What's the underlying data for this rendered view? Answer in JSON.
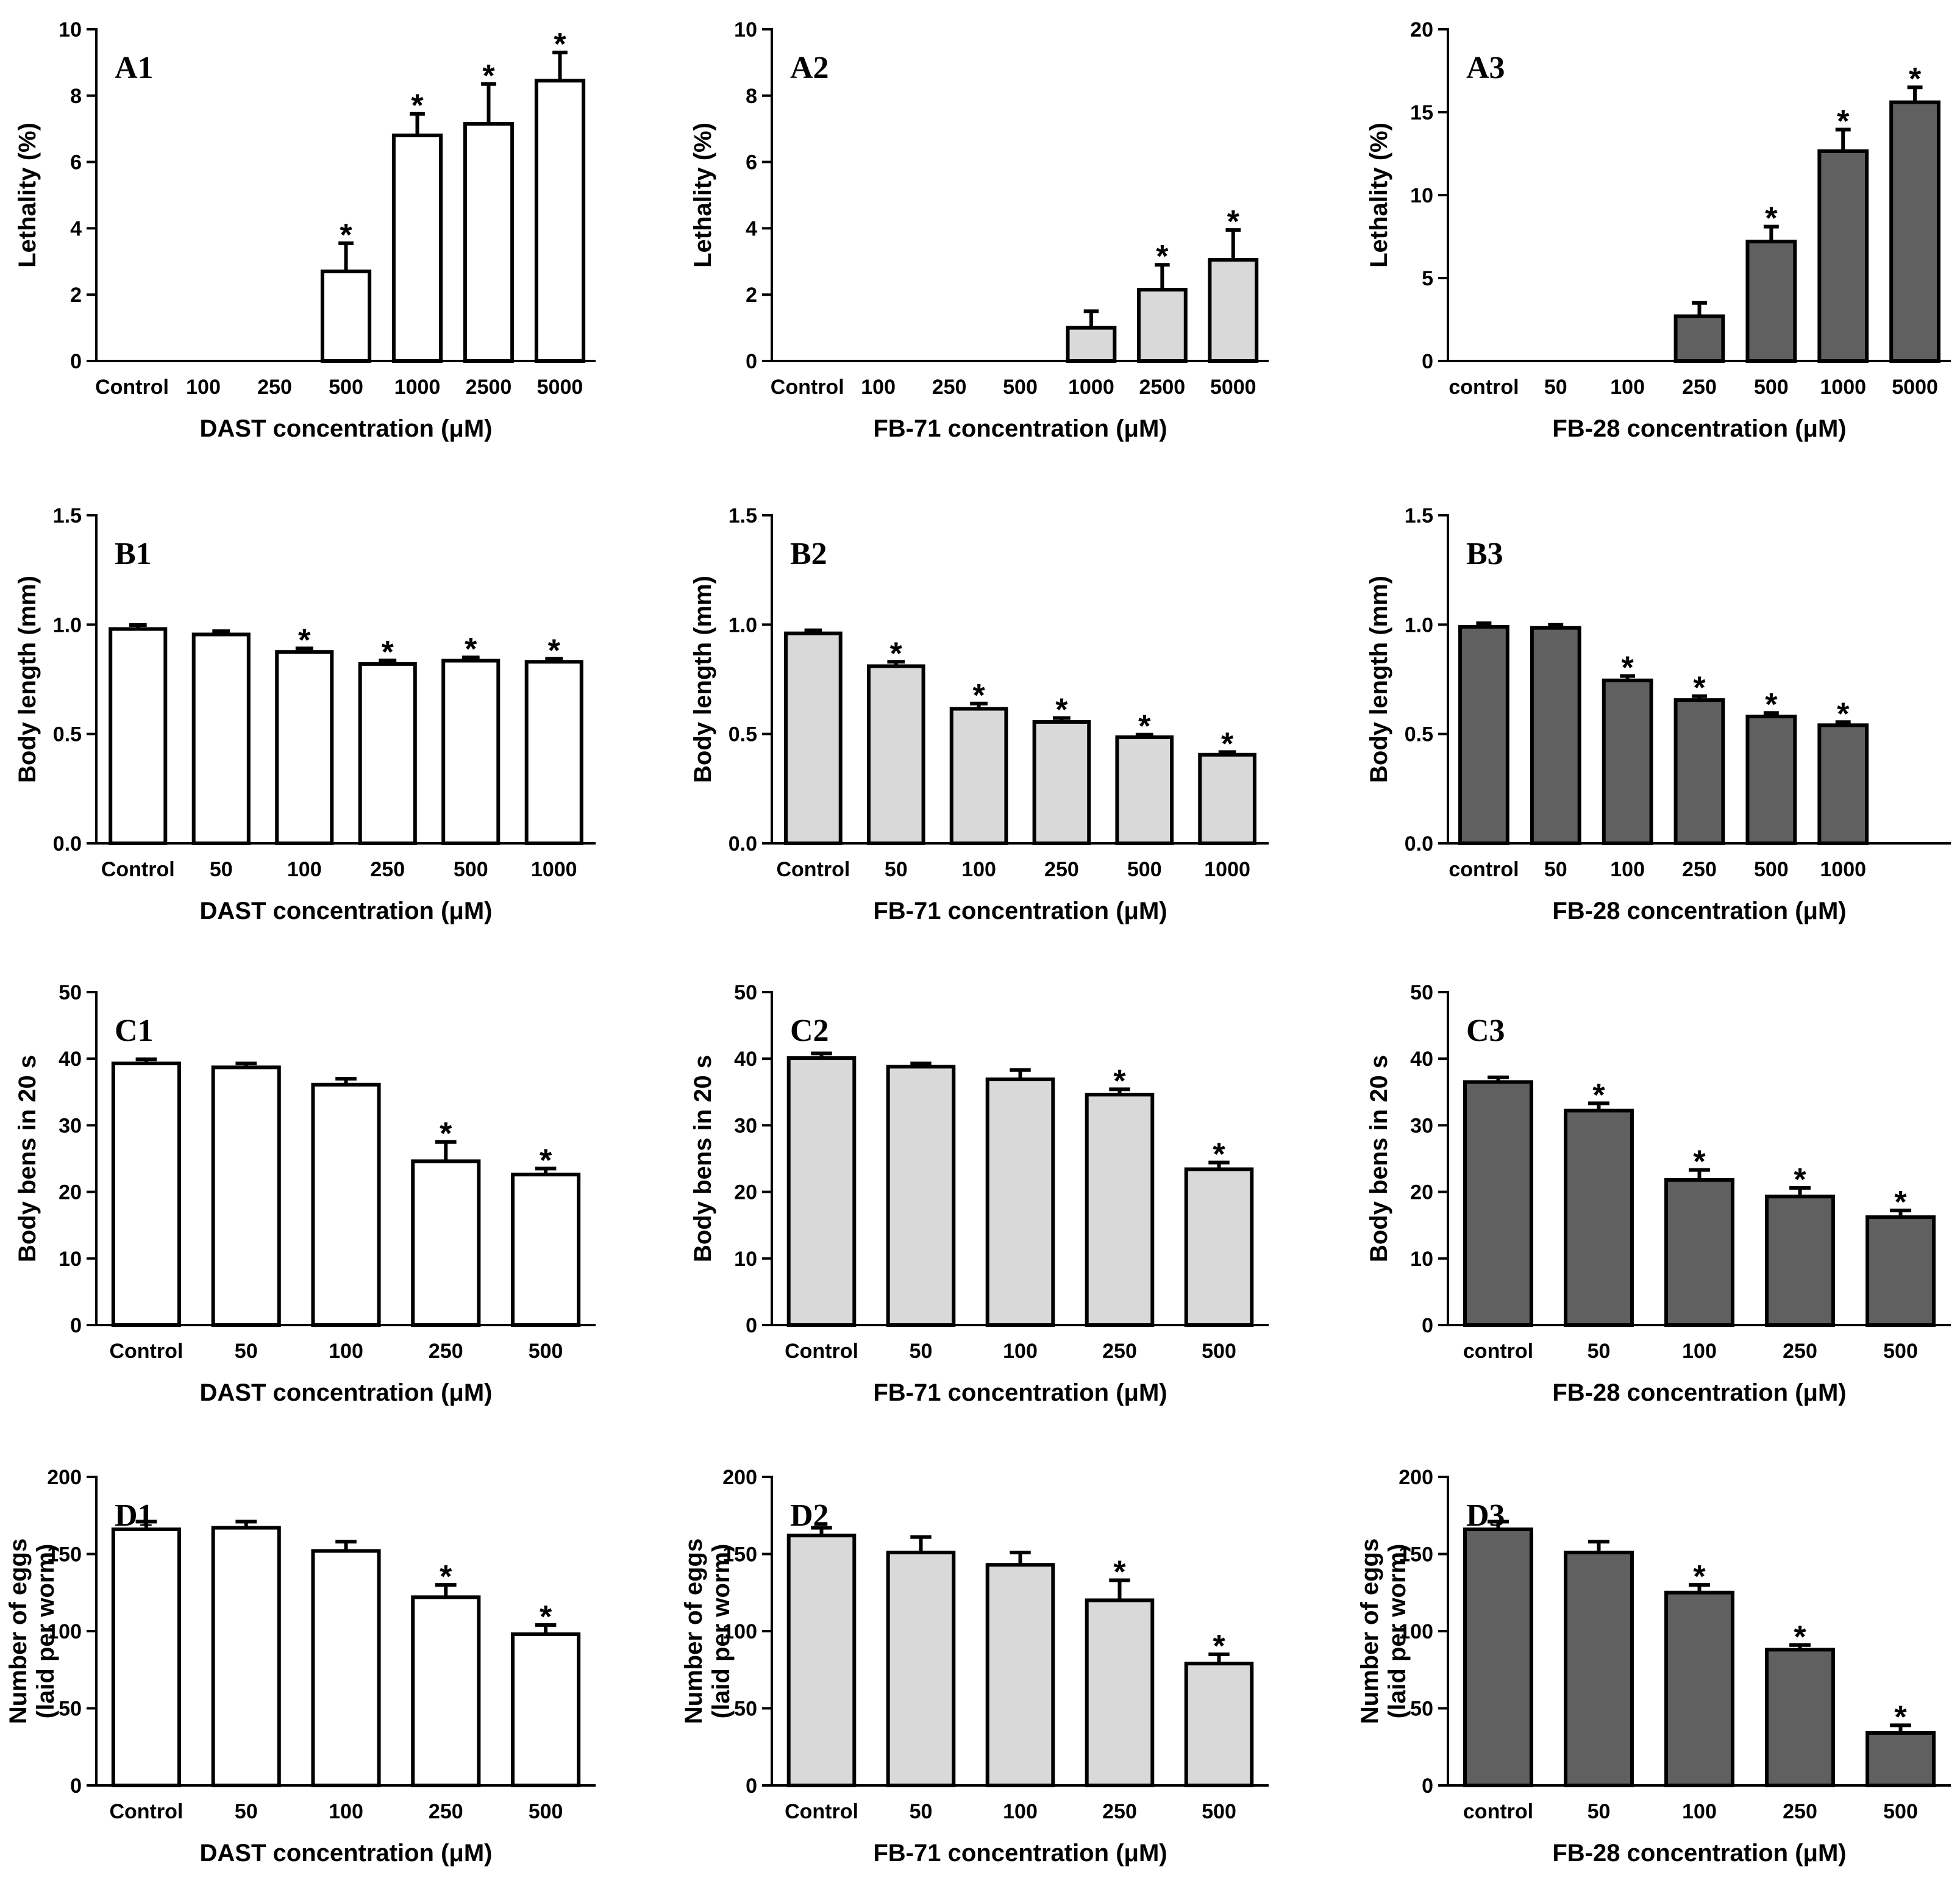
{
  "chart_data": [
    {
      "id": "A1",
      "type": "bar",
      "panel_label": "A1",
      "fill_color": "#ffffff",
      "ylabel": "Lethality (%)",
      "ylabel2": "",
      "xlabel": "DAST concentration (μM)",
      "ylim": [
        0,
        10
      ],
      "yticks": [
        "0",
        "2",
        "4",
        "6",
        "8",
        "10"
      ],
      "categories": [
        "Control",
        "100",
        "250",
        "500",
        "1000",
        "2500",
        "5000"
      ],
      "values": [
        0,
        0,
        0,
        2.7,
        6.8,
        7.15,
        8.45
      ],
      "errors": [
        0,
        0,
        0,
        0.85,
        0.65,
        1.2,
        0.85
      ],
      "significant": [
        false,
        false,
        false,
        true,
        true,
        true,
        true
      ]
    },
    {
      "id": "A2",
      "type": "bar",
      "panel_label": "A2",
      "fill_color": "#d9d9d9",
      "ylabel": "Lethality (%)",
      "ylabel2": "",
      "xlabel": "FB-71 concentration (μM)",
      "ylim": [
        0,
        10
      ],
      "yticks": [
        "0",
        "2",
        "4",
        "6",
        "8",
        "10"
      ],
      "categories": [
        "Control",
        "100",
        "250",
        "500",
        "1000",
        "2500",
        "5000"
      ],
      "values": [
        0,
        0,
        0,
        0,
        1.0,
        2.15,
        3.05
      ],
      "errors": [
        0,
        0,
        0,
        0,
        0.5,
        0.75,
        0.9
      ],
      "significant": [
        false,
        false,
        false,
        false,
        false,
        true,
        true
      ]
    },
    {
      "id": "A3",
      "type": "bar",
      "panel_label": "A3",
      "fill_color": "#606060",
      "ylabel": "Lethality (%)",
      "ylabel2": "",
      "xlabel": "FB-28 concentration (μM)",
      "ylim": [
        0,
        20
      ],
      "yticks": [
        "0",
        "5",
        "10",
        "15",
        "20"
      ],
      "categories": [
        "control",
        "50",
        "100",
        "250",
        "500",
        "1000",
        "5000"
      ],
      "values": [
        0,
        0,
        0,
        2.7,
        7.2,
        12.65,
        15.6
      ],
      "errors": [
        0,
        0,
        0,
        0.8,
        0.9,
        1.3,
        0.9
      ],
      "significant": [
        false,
        false,
        false,
        false,
        true,
        true,
        true
      ]
    },
    {
      "id": "B1",
      "type": "bar",
      "panel_label": "B1",
      "fill_color": "#ffffff",
      "ylabel": "Body length (mm)",
      "ylabel2": "",
      "xlabel": "DAST concentration (μM)",
      "ylim": [
        0,
        1.5
      ],
      "yticks": [
        "0.0",
        "0.5",
        "1.0",
        "1.5"
      ],
      "categories": [
        "Control",
        "50",
        "100",
        "250",
        "500",
        "1000"
      ],
      "values": [
        0.98,
        0.955,
        0.875,
        0.82,
        0.835,
        0.83
      ],
      "errors": [
        0.018,
        0.015,
        0.016,
        0.016,
        0.015,
        0.014
      ],
      "significant": [
        false,
        false,
        true,
        true,
        true,
        true
      ]
    },
    {
      "id": "B2",
      "type": "bar",
      "panel_label": "B2",
      "fill_color": "#d9d9d9",
      "ylabel": "Body length (mm)",
      "ylabel2": "",
      "xlabel": "FB-71 concentration (μM)",
      "ylim": [
        0,
        1.5
      ],
      "yticks": [
        "0.0",
        "0.5",
        "1.0",
        "1.5"
      ],
      "categories": [
        "Control",
        "50",
        "100",
        "250",
        "500",
        "1000"
      ],
      "values": [
        0.96,
        0.81,
        0.615,
        0.555,
        0.485,
        0.405
      ],
      "errors": [
        0.014,
        0.02,
        0.024,
        0.018,
        0.012,
        0.012
      ],
      "significant": [
        false,
        true,
        true,
        true,
        true,
        true
      ]
    },
    {
      "id": "B3",
      "type": "bar",
      "panel_label": "B3",
      "fill_color": "#606060",
      "ylabel": "Body length (mm)",
      "ylabel2": "",
      "xlabel": "FB-28 concentration (μM)",
      "ylim": [
        0,
        1.5
      ],
      "yticks": [
        "0.0",
        "0.5",
        "1.0",
        "1.5"
      ],
      "categories": [
        "control",
        "50",
        "100",
        "250",
        "500",
        "1000"
      ],
      "values": [
        0.99,
        0.985,
        0.745,
        0.655,
        0.58,
        0.54
      ],
      "errors": [
        0.016,
        0.014,
        0.02,
        0.018,
        0.016,
        0.014
      ],
      "significant": [
        false,
        false,
        true,
        true,
        true,
        true
      ],
      "extra_slots": 1
    },
    {
      "id": "C1",
      "type": "bar",
      "panel_label": "C1",
      "fill_color": "#ffffff",
      "ylabel": "Body bens in 20 s",
      "ylabel2": "",
      "xlabel": "DAST concentration (μM)",
      "ylim": [
        0,
        50
      ],
      "yticks": [
        "0",
        "10",
        "20",
        "30",
        "40",
        "50"
      ],
      "categories": [
        "Control",
        "50",
        "100",
        "250",
        "500"
      ],
      "values": [
        39.3,
        38.7,
        36.1,
        24.6,
        22.6
      ],
      "errors": [
        0.6,
        0.6,
        0.9,
        2.9,
        0.9
      ],
      "significant": [
        false,
        false,
        false,
        true,
        true
      ]
    },
    {
      "id": "C2",
      "type": "bar",
      "panel_label": "C2",
      "fill_color": "#d9d9d9",
      "ylabel": "Body bens in 20 s",
      "ylabel2": "",
      "xlabel": "FB-71 concentration (μM)",
      "ylim": [
        0,
        50
      ],
      "yticks": [
        "0",
        "10",
        "20",
        "30",
        "40",
        "50"
      ],
      "categories": [
        "Control",
        "50",
        "100",
        "250",
        "500"
      ],
      "values": [
        40.1,
        38.8,
        36.9,
        34.6,
        23.4
      ],
      "errors": [
        0.7,
        0.5,
        1.4,
        0.8,
        1.0
      ],
      "significant": [
        false,
        false,
        false,
        true,
        true
      ]
    },
    {
      "id": "C3",
      "type": "bar",
      "panel_label": "C3",
      "fill_color": "#606060",
      "ylabel": "Body bens in 20 s",
      "ylabel2": "",
      "xlabel": "FB-28 concentration (μM)",
      "ylim": [
        0,
        50
      ],
      "yticks": [
        "0",
        "10",
        "20",
        "30",
        "40",
        "50"
      ],
      "categories": [
        "control",
        "50",
        "100",
        "250",
        "500"
      ],
      "values": [
        36.5,
        32.2,
        21.8,
        19.3,
        16.2
      ],
      "errors": [
        0.7,
        1.1,
        1.5,
        1.3,
        1.0
      ],
      "significant": [
        false,
        true,
        true,
        true,
        true
      ]
    },
    {
      "id": "D1",
      "type": "bar",
      "panel_label": "D1",
      "fill_color": "#ffffff",
      "ylabel": "Number of eggs",
      "ylabel2": "(laid per worm)",
      "xlabel": "DAST concentration (μM)",
      "ylim": [
        0,
        200
      ],
      "yticks": [
        "0",
        "50",
        "100",
        "150",
        "200"
      ],
      "categories": [
        "Control",
        "50",
        "100",
        "250",
        "500"
      ],
      "values": [
        166,
        167,
        152,
        122,
        98
      ],
      "errors": [
        5,
        4,
        6,
        8,
        6
      ],
      "significant": [
        false,
        false,
        false,
        true,
        true
      ]
    },
    {
      "id": "D2",
      "type": "bar",
      "panel_label": "D2",
      "fill_color": "#d9d9d9",
      "ylabel": "Number of eggs",
      "ylabel2": "(laid per worm)",
      "xlabel": "FB-71 concentration (μM)",
      "ylim": [
        0,
        200
      ],
      "yticks": [
        "0",
        "50",
        "100",
        "150",
        "200"
      ],
      "categories": [
        "Control",
        "50",
        "100",
        "250",
        "500"
      ],
      "values": [
        162,
        151,
        143,
        120,
        79
      ],
      "errors": [
        5,
        10,
        8,
        13,
        6
      ],
      "significant": [
        false,
        false,
        false,
        true,
        true
      ]
    },
    {
      "id": "D3",
      "type": "bar",
      "panel_label": "D3",
      "fill_color": "#606060",
      "ylabel": "Number of eggs",
      "ylabel2": "(laid per worm)",
      "xlabel": "FB-28 concentration (μM)",
      "ylim": [
        0,
        200
      ],
      "yticks": [
        "0",
        "50",
        "100",
        "150",
        "200"
      ],
      "categories": [
        "control",
        "50",
        "100",
        "250",
        "500"
      ],
      "values": [
        166,
        151,
        125,
        88,
        34
      ],
      "errors": [
        5,
        7,
        5,
        3,
        5
      ],
      "significant": [
        false,
        false,
        true,
        true,
        true
      ]
    }
  ]
}
